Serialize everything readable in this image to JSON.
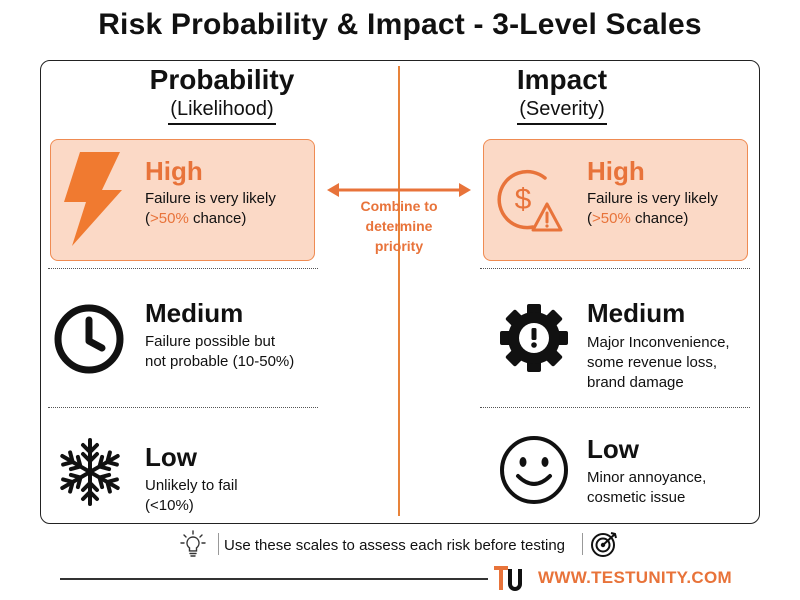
{
  "title": "Risk Probability & Impact - 3-Level Scales",
  "probability": {
    "heading": "Probability",
    "subheading": "(Likelihood)",
    "levels": [
      {
        "label": "High",
        "desc_pre": "Failure is very likely",
        "desc_open": "(",
        "desc_highlight": ">50%",
        "desc_post": " chance)",
        "icon": "lightning-bolt-icon"
      },
      {
        "label": "Medium",
        "desc_line1": "Failure possible but",
        "desc_line2": "not probable (10-50%)",
        "icon": "clock-icon"
      },
      {
        "label": "Low",
        "desc_line1": "Unlikely to fail",
        "desc_line2": "(<10%)",
        "icon": "snowflake-icon"
      }
    ]
  },
  "impact": {
    "heading": "Impact",
    "subheading": "(Severity)",
    "levels": [
      {
        "label": "High",
        "desc_pre": "Failure is very likely",
        "desc_open": "(",
        "desc_highlight": ">50%",
        "desc_post": " chance)",
        "icon": "dollar-warning-icon"
      },
      {
        "label": "Medium",
        "desc_line1": "Major Inconvenience,",
        "desc_line2": "some revenue loss,",
        "desc_line3": "brand damage",
        "icon": "gear-alert-icon"
      },
      {
        "label": "Low",
        "desc_line1": "Minor annoyance,",
        "desc_line2": "cosmetic issue",
        "icon": "smiley-face-icon"
      }
    ]
  },
  "center": {
    "line1": "Combine to",
    "line2": "determine",
    "line3": "priority"
  },
  "footer": {
    "note": "Use these scales to assess each risk before testing",
    "url": "WWW.TESTUNITY.COM",
    "icons": [
      "lightbulb-icon",
      "target-icon",
      "testunity-logo"
    ]
  },
  "colors": {
    "accent": "#e8733a",
    "highlight_box": "#fbd9c6"
  }
}
